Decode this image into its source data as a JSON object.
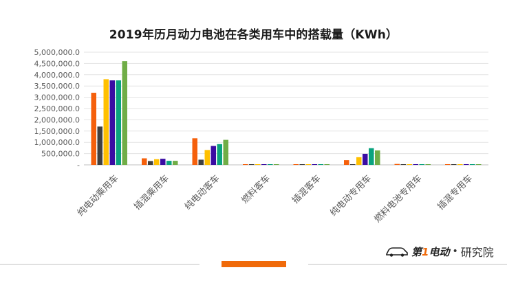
{
  "chart_data": {
    "type": "bar",
    "title": "2019年历月动力电池在各类用车中的搭载量（KWh）",
    "xlabel": "",
    "ylabel": "",
    "ylim": [
      0,
      5000000
    ],
    "y_ticks": [
      "-",
      "500,000.0",
      "1,000,000.0",
      "1,500,000.0",
      "2,000,000.0",
      "2,500,000.0",
      "3,000,000.0",
      "3,500,000.0",
      "4,000,000.0",
      "4,500,000.0",
      "5,000,000.0"
    ],
    "grid": true,
    "legend": "none",
    "categories": [
      "纯电动乘用车",
      "插混乘用车",
      "纯电动客车",
      "燃料客车",
      "插混客车",
      "纯电动专用车",
      "燃料电池专用车",
      "插混专用车"
    ],
    "series": [
      {
        "color": "#f5600c",
        "values": [
          3200000,
          290000,
          1180000,
          20000,
          20000,
          210000,
          40000,
          30000
        ]
      },
      {
        "color": "#404040",
        "values": [
          1700000,
          170000,
          230000,
          15000,
          10000,
          10000,
          5000,
          10000
        ]
      },
      {
        "color": "#ffc000",
        "values": [
          3800000,
          250000,
          660000,
          20000,
          20000,
          340000,
          5000,
          30000
        ]
      },
      {
        "color": "#3a0ca3",
        "values": [
          3750000,
          270000,
          840000,
          30000,
          20000,
          490000,
          20000,
          20000
        ]
      },
      {
        "color": "#0aa37e",
        "values": [
          3750000,
          180000,
          920000,
          20000,
          15000,
          740000,
          30000,
          20000
        ]
      },
      {
        "color": "#70ad47",
        "values": [
          4600000,
          180000,
          1110000,
          20000,
          10000,
          640000,
          20000,
          20000
        ]
      }
    ]
  },
  "brand": {
    "name_part1": "第",
    "name_part2": "1",
    "name_part3": "电动",
    "separator": "•",
    "suffix": "研究院",
    "accent_color": "#f06a0a"
  }
}
